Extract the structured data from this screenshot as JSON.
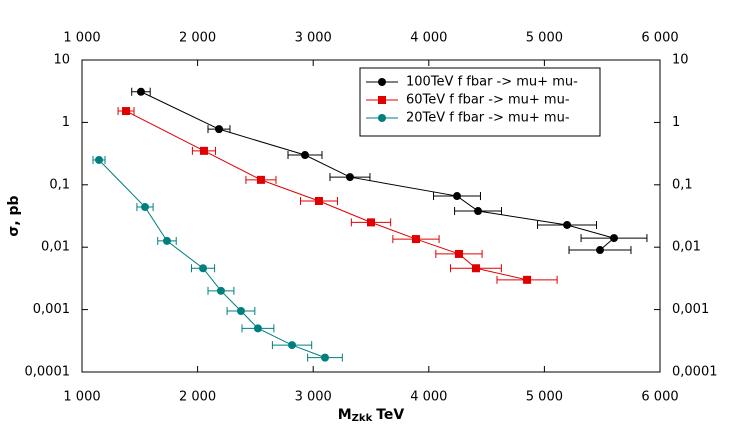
{
  "chart_data": {
    "type": "scatter",
    "x_label": {
      "main": "M",
      "sub": "Zkk",
      "unit": "TeV"
    },
    "y_label": "σ, pb",
    "log_y": true,
    "grid": false,
    "legend": "upper right",
    "xlim": [
      1000,
      6000
    ],
    "xticks": [
      {
        "value": 1000,
        "label": "1 000"
      },
      {
        "value": 2000,
        "label": "2 000"
      },
      {
        "value": 3000,
        "label": "3 000"
      },
      {
        "value": 4000,
        "label": "4 000"
      },
      {
        "value": 5000,
        "label": "5 000"
      },
      {
        "value": 6000,
        "label": "6 000"
      }
    ],
    "ylim": [
      0.0001,
      10
    ],
    "yticks": [
      {
        "value": 0.0001,
        "label": "0,0001"
      },
      {
        "value": 0.001,
        "label": "0,001"
      },
      {
        "value": 0.01,
        "label": "0,01"
      },
      {
        "value": 0.1,
        "label": "0,1"
      },
      1,
      10
    ],
    "series": [
      {
        "name": "100TeV f fbar -> mu+ mu-",
        "color": "#000000",
        "marker": "circle",
        "x": [
          1510,
          2185,
          2929,
          3318,
          4244,
          4426,
          5196,
          5602,
          5481
        ],
        "values": [
          3.1,
          0.78,
          0.3,
          0.133,
          0.066,
          0.038,
          0.0227,
          0.014,
          0.009
        ],
        "xerr": [
          80,
          95,
          147,
          173,
          203,
          203,
          255,
          285,
          268
        ]
      },
      {
        "name": "60TeV f fbar -> mu+ mu-",
        "color": "#e00000",
        "marker": "square",
        "x": [
          1381,
          2055,
          2548,
          3050,
          3500,
          3889,
          4261,
          4408,
          4850
        ],
        "values": [
          1.52,
          0.35,
          0.12,
          0.055,
          0.025,
          0.0135,
          0.0078,
          0.0046,
          0.003
        ],
        "xerr": [
          69,
          100,
          130,
          160,
          170,
          200,
          200,
          220,
          260
        ]
      },
      {
        "name": "20TeV f fbar -> mu+ mu-",
        "color": "#007f7f",
        "marker": "circle",
        "x": [
          1147,
          1545,
          1735,
          2047,
          2202,
          2375,
          2522,
          2817,
          3102
        ],
        "values": [
          0.25,
          0.044,
          0.0126,
          0.0046,
          0.002,
          0.00095,
          0.0005,
          0.00027,
          0.00017
        ],
        "xerr": [
          52,
          70,
          80,
          100,
          112,
          120,
          138,
          170,
          150
        ]
      }
    ]
  }
}
